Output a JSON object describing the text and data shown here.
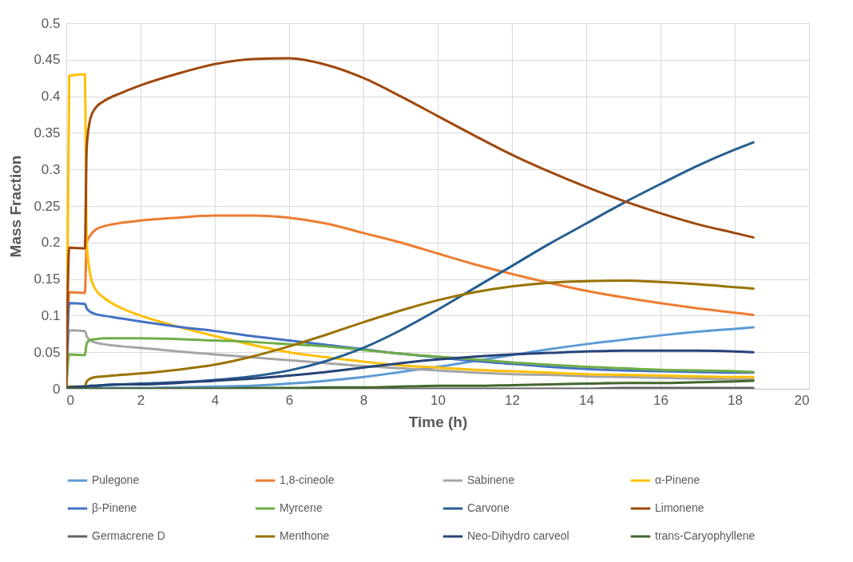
{
  "chart_data": {
    "type": "line",
    "xlabel": "Time (h)",
    "ylabel": "Mass Fraction",
    "x": [
      0,
      0.08,
      0.5,
      0.55,
      0.65,
      0.8,
      1,
      1.5,
      2,
      3,
      4,
      5,
      6,
      7,
      8,
      9,
      10,
      11,
      12,
      13,
      14,
      15,
      16,
      17,
      18,
      18.5
    ],
    "xlim": [
      0,
      20
    ],
    "xticks": [
      0,
      2,
      4,
      6,
      8,
      10,
      12,
      14,
      16,
      18,
      20
    ],
    "ylim": [
      0,
      0.5
    ],
    "yticks": [
      0,
      0.05,
      0.1,
      0.15,
      0.2,
      0.25,
      0.3,
      0.35,
      0.4,
      0.45,
      0.5
    ],
    "grid": true,
    "legend": "bottom",
    "marker": "none",
    "line_style": "solid",
    "series": [
      {
        "name": "Pulegone",
        "color": "#5b9bd5",
        "values": [
          null,
          null,
          null,
          null,
          0.001,
          0.001,
          0.001,
          0.001,
          0.001,
          0.002,
          0.003,
          0.004,
          0.007,
          0.011,
          0.016,
          0.023,
          0.03,
          0.038,
          0.046,
          0.054,
          0.061,
          0.067,
          0.073,
          0.078,
          0.082,
          0.084
        ]
      },
      {
        "name": "1,8-cineole",
        "color": "#ed7d31",
        "values": [
          0,
          0.132,
          0.131,
          0.2,
          0.21,
          0.218,
          0.222,
          0.227,
          0.23,
          0.234,
          0.237,
          0.237,
          0.234,
          0.226,
          0.213,
          0.2,
          0.185,
          0.17,
          0.157,
          0.145,
          0.134,
          0.125,
          0.117,
          0.11,
          0.104,
          0.101
        ]
      },
      {
        "name": "Sabinene",
        "color": "#a5a5a5",
        "values": [
          0,
          0.08,
          0.079,
          0.072,
          0.066,
          0.063,
          0.061,
          0.058,
          0.056,
          0.051,
          0.047,
          0.043,
          0.039,
          0.035,
          0.031,
          0.028,
          0.025,
          0.022,
          0.02,
          0.019,
          0.017,
          0.016,
          0.015,
          0.014,
          0.013,
          0.013
        ]
      },
      {
        "name": "α-Pinene",
        "color": "#ffc000",
        "values": [
          0,
          0.428,
          0.43,
          0.2,
          0.155,
          0.135,
          0.125,
          0.11,
          0.1,
          0.085,
          0.072,
          0.06,
          0.05,
          0.043,
          0.037,
          0.032,
          0.029,
          0.026,
          0.024,
          0.022,
          0.02,
          0.019,
          0.018,
          0.017,
          0.016,
          0.016
        ]
      },
      {
        "name": "β-Pinene",
        "color": "#4472c4",
        "values": [
          0,
          0.117,
          0.116,
          0.11,
          0.105,
          0.102,
          0.1,
          0.096,
          0.092,
          0.085,
          0.079,
          0.072,
          0.066,
          0.06,
          0.054,
          0.048,
          0.043,
          0.038,
          0.034,
          0.03,
          0.027,
          0.025,
          0.024,
          0.023,
          0.022,
          0.022
        ]
      },
      {
        "name": "Myrcene",
        "color": "#70ad47",
        "values": [
          0,
          0.047,
          0.046,
          0.062,
          0.067,
          0.068,
          0.069,
          0.069,
          0.069,
          0.068,
          0.066,
          0.064,
          0.061,
          0.058,
          0.053,
          0.048,
          0.044,
          0.04,
          0.036,
          0.033,
          0.03,
          0.028,
          0.026,
          0.025,
          0.024,
          0.023
        ]
      },
      {
        "name": "Carvone",
        "color": "#255e91",
        "values": [
          0,
          0.002,
          0.003,
          0.003,
          0.004,
          0.004,
          0.005,
          0.006,
          0.007,
          0.009,
          0.012,
          0.017,
          0.025,
          0.038,
          0.056,
          0.08,
          0.108,
          0.138,
          0.168,
          0.198,
          0.226,
          0.254,
          0.28,
          0.305,
          0.327,
          0.337
        ]
      },
      {
        "name": "Limonene",
        "color": "#9e480e",
        "values": [
          0,
          0.193,
          0.192,
          0.33,
          0.37,
          0.385,
          0.393,
          0.405,
          0.415,
          0.431,
          0.444,
          0.451,
          0.452,
          0.443,
          0.425,
          0.4,
          0.373,
          0.346,
          0.32,
          0.297,
          0.276,
          0.257,
          0.24,
          0.225,
          0.213,
          0.207
        ]
      },
      {
        "name": "Germacrene D",
        "color": "#636363",
        "values": [
          0,
          0,
          0,
          0,
          0,
          0,
          0,
          0,
          0,
          0,
          0,
          0,
          0,
          0,
          0,
          0,
          0,
          0,
          0,
          0,
          0,
          0.001,
          0.001,
          0.001,
          0.001,
          0.001
        ]
      },
      {
        "name": "Menthone",
        "color": "#997300",
        "values": [
          0,
          0.003,
          0.003,
          0.01,
          0.014,
          0.016,
          0.017,
          0.019,
          0.021,
          0.026,
          0.033,
          0.044,
          0.058,
          0.074,
          0.091,
          0.107,
          0.121,
          0.132,
          0.14,
          0.145,
          0.147,
          0.148,
          0.146,
          0.143,
          0.139,
          0.137
        ]
      },
      {
        "name": "Neo-Dihydro carveol",
        "color": "#264478",
        "values": [
          0,
          0.002,
          0.003,
          0.003,
          0.004,
          0.004,
          0.005,
          0.006,
          0.006,
          0.008,
          0.011,
          0.014,
          0.018,
          0.023,
          0.029,
          0.035,
          0.04,
          0.044,
          0.047,
          0.049,
          0.051,
          0.052,
          0.052,
          0.052,
          0.051,
          0.05
        ]
      },
      {
        "name": "trans-Caryophyllene",
        "color": "#43682b",
        "values": [
          0,
          0,
          0,
          0,
          0,
          0,
          0,
          0,
          0,
          0,
          0,
          0.001,
          0.001,
          0.002,
          0.002,
          0.003,
          0.004,
          0.004,
          0.005,
          0.006,
          0.007,
          0.008,
          0.008,
          0.009,
          0.01,
          0.011
        ]
      }
    ]
  }
}
